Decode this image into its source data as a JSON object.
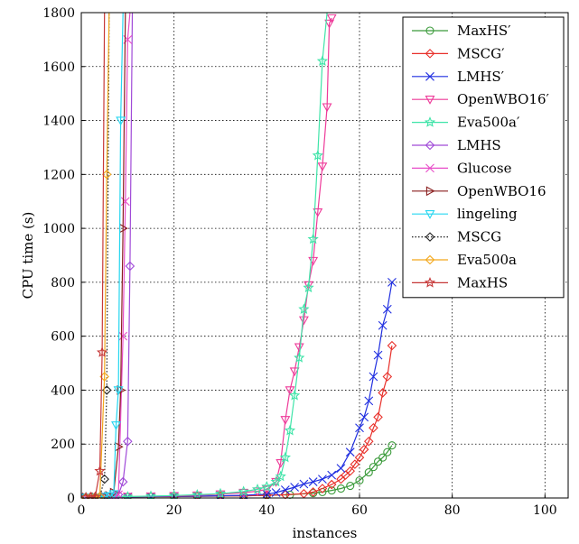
{
  "chart_data": {
    "type": "line",
    "title": "",
    "xlabel": "instances",
    "ylabel": "CPU time (s)",
    "xlim": [
      0,
      105
    ],
    "ylim": [
      0,
      1800
    ],
    "xticks": [
      0,
      20,
      40,
      60,
      80,
      100
    ],
    "yticks": [
      0,
      200,
      400,
      600,
      800,
      1000,
      1200,
      1400,
      1600,
      1800
    ],
    "grid": true,
    "legend_position": "top-right",
    "series": [
      {
        "name": "MaxHS′",
        "color": "#3a9a3a",
        "marker": "circle",
        "dash": "solid",
        "x": [
          1,
          5,
          10,
          15,
          20,
          25,
          30,
          35,
          40,
          45,
          50,
          52,
          54,
          56,
          58,
          60,
          62,
          63,
          64,
          65,
          66,
          67
        ],
        "y": [
          2,
          3,
          4,
          5,
          5,
          6,
          7,
          8,
          10,
          12,
          18,
          22,
          28,
          35,
          45,
          65,
          95,
          115,
          135,
          150,
          170,
          195
        ]
      },
      {
        "name": "MSCG′",
        "color": "#e8302a",
        "marker": "diamond",
        "dash": "solid",
        "x": [
          1,
          5,
          10,
          15,
          20,
          25,
          30,
          35,
          40,
          44,
          48,
          50,
          52,
          54,
          56,
          57,
          58,
          59,
          60,
          61,
          62,
          63,
          64,
          65,
          66,
          67
        ],
        "y": [
          2,
          3,
          4,
          5,
          5,
          6,
          7,
          8,
          10,
          12,
          16,
          22,
          35,
          50,
          70,
          85,
          100,
          125,
          150,
          180,
          210,
          260,
          300,
          390,
          450,
          565
        ]
      },
      {
        "name": "LMHS′",
        "color": "#1f2ee0",
        "marker": "x",
        "dash": "solid",
        "x": [
          1,
          5,
          10,
          15,
          20,
          25,
          30,
          35,
          40,
          42,
          44,
          46,
          48,
          50,
          52,
          54,
          56,
          58,
          60,
          61,
          62,
          63,
          64,
          65,
          66,
          67
        ],
        "y": [
          2,
          3,
          4,
          5,
          6,
          7,
          8,
          10,
          14,
          20,
          30,
          40,
          52,
          60,
          70,
          85,
          110,
          170,
          260,
          300,
          360,
          450,
          530,
          640,
          700,
          800
        ]
      },
      {
        "name": "OpenWBO16′",
        "color": "#ee3a99",
        "marker": "triangle-down",
        "dash": "solid",
        "x": [
          1,
          5,
          10,
          15,
          20,
          25,
          30,
          35,
          38,
          40,
          42,
          43,
          44,
          45,
          46,
          47,
          48,
          49,
          50,
          51,
          52,
          53,
          53.5,
          54
        ],
        "y": [
          2,
          3,
          5,
          6,
          8,
          10,
          14,
          20,
          25,
          32,
          60,
          130,
          290,
          400,
          470,
          560,
          660,
          790,
          880,
          1060,
          1230,
          1450,
          1760,
          1780
        ]
      },
      {
        "name": "Eva500a′",
        "color": "#3ee4a8",
        "marker": "star",
        "dash": "solid",
        "x": [
          1,
          5,
          10,
          15,
          20,
          25,
          30,
          35,
          38,
          40,
          42,
          43,
          44,
          45,
          46,
          47,
          48,
          49,
          50,
          51,
          52,
          53
        ],
        "y": [
          2,
          3,
          5,
          7,
          9,
          12,
          16,
          24,
          32,
          42,
          60,
          80,
          150,
          250,
          380,
          520,
          700,
          780,
          960,
          1270,
          1620,
          1800
        ]
      },
      {
        "name": "LMHS",
        "color": "#a04ad8",
        "marker": "diamond",
        "dash": "solid",
        "x": [
          1,
          3,
          5,
          7,
          8,
          9,
          10,
          10.5,
          11
        ],
        "y": [
          2,
          3,
          5,
          8,
          12,
          60,
          210,
          860,
          1800
        ]
      },
      {
        "name": "Glucose",
        "color": "#e84cc8",
        "marker": "x",
        "dash": "solid",
        "x": [
          1,
          3,
          5,
          7,
          8,
          9,
          9.5,
          10,
          10.5
        ],
        "y": [
          2,
          3,
          5,
          8,
          12,
          600,
          1100,
          1700,
          1800
        ]
      },
      {
        "name": "OpenWBO16",
        "color": "#8a1e1e",
        "marker": "triangle-right",
        "dash": "solid",
        "x": [
          1,
          3,
          5,
          6,
          7,
          8,
          8.5,
          9,
          9.5
        ],
        "y": [
          2,
          3,
          5,
          8,
          20,
          190,
          400,
          1000,
          1800
        ]
      },
      {
        "name": "lingeling",
        "color": "#25d6f0",
        "marker": "triangle-down",
        "dash": "solid",
        "x": [
          1,
          3,
          5,
          6,
          7,
          7.5,
          8,
          8.5,
          9
        ],
        "y": [
          2,
          3,
          5,
          8,
          15,
          270,
          400,
          1400,
          1800
        ]
      },
      {
        "name": "MSCG",
        "color": "#202020",
        "marker": "diamond",
        "dash": "dotted",
        "x": [
          1,
          2,
          3,
          4,
          5,
          5.5,
          6
        ],
        "y": [
          2,
          3,
          4,
          5,
          70,
          400,
          1800
        ]
      },
      {
        "name": "Eva500a",
        "color": "#f2a81c",
        "marker": "diamond",
        "dash": "solid",
        "x": [
          1,
          2,
          3,
          4,
          5,
          5.5,
          6
        ],
        "y": [
          2,
          3,
          4,
          5,
          450,
          1200,
          1800
        ]
      },
      {
        "name": "MaxHS",
        "color": "#c63838",
        "marker": "star",
        "dash": "solid",
        "x": [
          1,
          2,
          3,
          4,
          4.5,
          5
        ],
        "y": [
          2,
          3,
          4,
          100,
          540,
          1800
        ]
      }
    ]
  }
}
